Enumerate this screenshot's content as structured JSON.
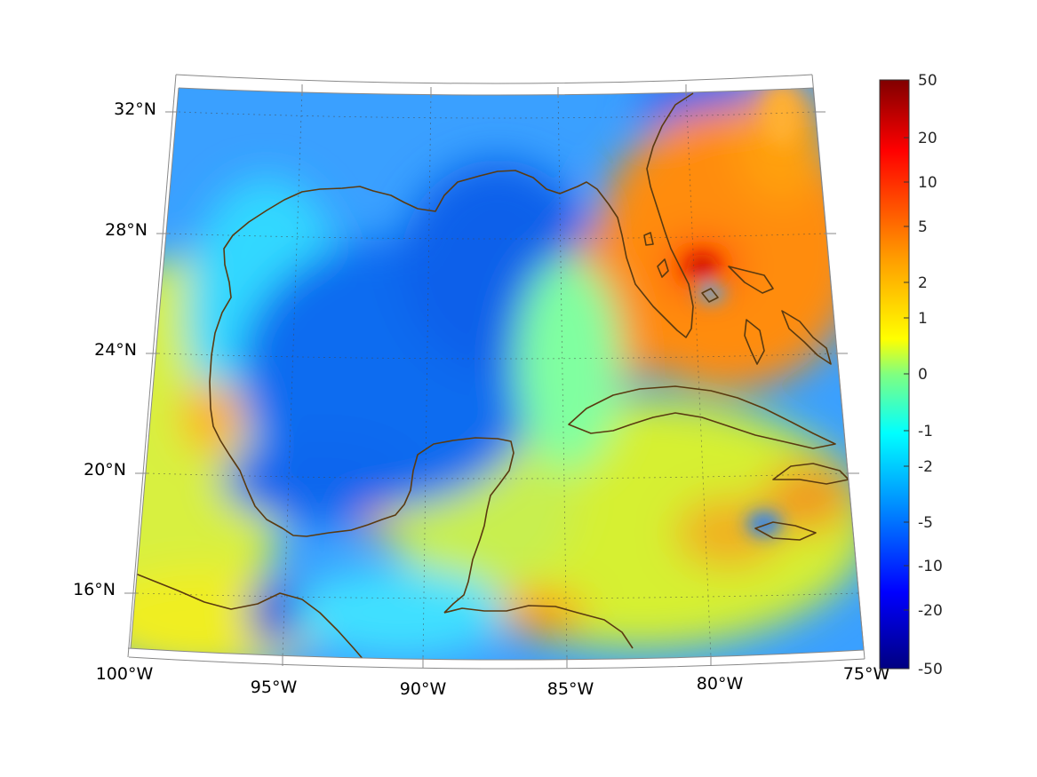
{
  "map": {
    "lon_labels": [
      "100°W",
      "95°W",
      "90°W",
      "85°W",
      "80°W",
      "75°W"
    ],
    "lat_labels": [
      "32°N",
      "28°N",
      "24°N",
      "20°N",
      "16°N"
    ],
    "projection": "conic",
    "grid": "dotted",
    "coastline_color": "#5a3a10",
    "land_regions": [
      "Texas / Louisiana coast",
      "Florida",
      "Yucatan Peninsula",
      "Cuba",
      "Central America",
      "Mexico",
      "Bahamas",
      "Jamaica",
      "Hispaniola"
    ]
  },
  "colorbar": {
    "colormap": "jet",
    "ticks": [
      "50",
      "20",
      "10",
      "5",
      "2",
      "1",
      "0",
      "-1",
      "-2",
      "-5",
      "-10",
      "-20",
      "-50"
    ]
  },
  "colors": {
    "dark_red": "#800000",
    "red": "#ff2000",
    "orange": "#ff9000",
    "yellow": "#ffff00",
    "green": "#80ff80",
    "cyan": "#00ffff",
    "blue": "#0060ff",
    "dark_blue": "#000080"
  }
}
